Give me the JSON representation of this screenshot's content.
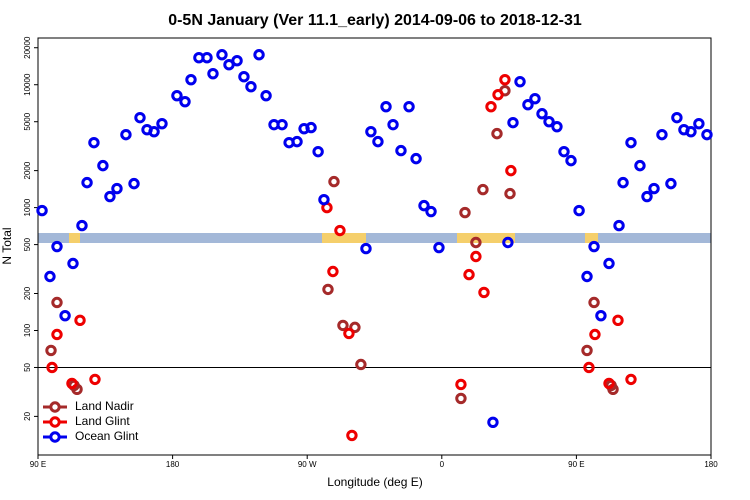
{
  "chart_data": {
    "type": "scatter",
    "title": "0-5N January (Ver 11.1_early)   2014-09-06 to 2018-12-31",
    "xlabel": "Longitude (deg E)",
    "ylabel": "N Total",
    "log_y": true,
    "xlim": [
      90,
      540
    ],
    "ylim": [
      9.7,
      24000
    ],
    "xticks": [
      {
        "value": 90,
        "label": "90 E"
      },
      {
        "value": 180,
        "label": "180"
      },
      {
        "value": 270,
        "label": "90 W"
      },
      {
        "value": 360,
        "label": "0"
      },
      {
        "value": 450,
        "label": "90 E"
      },
      {
        "value": 540,
        "label": "180"
      }
    ],
    "yticks": [
      20,
      50,
      100,
      200,
      500,
      1000,
      2000,
      5000,
      10000,
      20000
    ],
    "hline": 50,
    "legend": "bottom-left",
    "series": [
      {
        "name": "Land Nadir",
        "color": "#a52a2a",
        "x": [
          98.7,
          102.7,
          114.1,
          116.1,
          283.9,
          287.9,
          293.9,
          301.9,
          305.9,
          372.8,
          375.5,
          382.8,
          387.5,
          396.9,
          402.2,
          405.6,
          457.1,
          461.8,
          473.2,
          474.5
        ],
        "values": [
          68.8,
          169,
          35.7,
          33.2,
          216,
          1628,
          110,
          106,
          52.9,
          28.0,
          911,
          520,
          1402,
          3999,
          8939,
          1300,
          68.8,
          169,
          35.7,
          33.2
        ]
      },
      {
        "name": "Land Glint",
        "color": "#ee0000",
        "x": [
          99.4,
          102.7,
          112.7,
          118.1,
          128.1,
          283.2,
          287.2,
          291.9,
          297.9,
          299.9,
          372.8,
          378.2,
          382.8,
          388.2,
          392.9,
          397.6,
          402.2,
          406.2,
          458.4,
          462.4,
          471.8,
          477.8,
          486.5
        ],
        "values": [
          50.0,
          92.8,
          37.1,
          121,
          40.0,
          1000,
          302,
          651,
          94.6,
          14.0,
          36.4,
          285,
          400,
          204,
          6627,
          8298,
          10990,
          2000,
          50.0,
          92.8,
          37.1,
          121,
          40.0
        ]
      },
      {
        "name": "Ocean Glint",
        "color": "#0000ee",
        "x": [
          92.7,
          98.0,
          102.7,
          108.1,
          113.4,
          119.4,
          122.8,
          127.4,
          133.4,
          138.1,
          142.8,
          148.8,
          154.2,
          158.2,
          162.9,
          167.6,
          172.9,
          182.9,
          188.3,
          192.3,
          197.6,
          203.0,
          207.0,
          213.0,
          217.7,
          223.1,
          227.7,
          232.4,
          237.8,
          242.5,
          247.8,
          253.2,
          257.9,
          263.2,
          267.9,
          272.6,
          277.3,
          281.2,
          309.3,
          312.6,
          317.3,
          322.7,
          327.4,
          332.7,
          338.1,
          342.8,
          348.1,
          352.8,
          358.1,
          394.2,
          404.2,
          407.6,
          412.3,
          417.6,
          422.3,
          427.0,
          431.7,
          437.0,
          441.7,
          446.4,
          451.8,
          457.1,
          461.8,
          466.4,
          471.8,
          478.5,
          481.2,
          486.5,
          492.5,
          497.2,
          501.9,
          507.2,
          513.2,
          517.2,
          521.9,
          526.6,
          531.9,
          537.3
        ],
        "values": [
          946,
          275,
          482,
          132,
          351,
          714,
          1597,
          3378,
          2196,
          1230,
          1428,
          3924,
          1567,
          5395,
          4306,
          4150,
          4821,
          8147,
          7278,
          10990,
          16590,
          16590,
          12300,
          17540,
          14550,
          15680,
          11620,
          9638,
          17540,
          8147,
          4732,
          4732,
          3378,
          3443,
          4390,
          4477,
          2853,
          1161,
          464,
          4150,
          3443,
          6627,
          4732,
          2910,
          6627,
          2504,
          1038,
          929,
          473,
          17.9,
          520,
          4913,
          10590,
          6879,
          7697,
          5807,
          5003,
          4557,
          2853,
          2412,
          946,
          275,
          482,
          132,
          351,
          714,
          1597,
          3378,
          2196,
          1230,
          1428,
          3924,
          1567,
          5395,
          4306,
          4150,
          4821,
          3924
        ]
      }
    ]
  }
}
